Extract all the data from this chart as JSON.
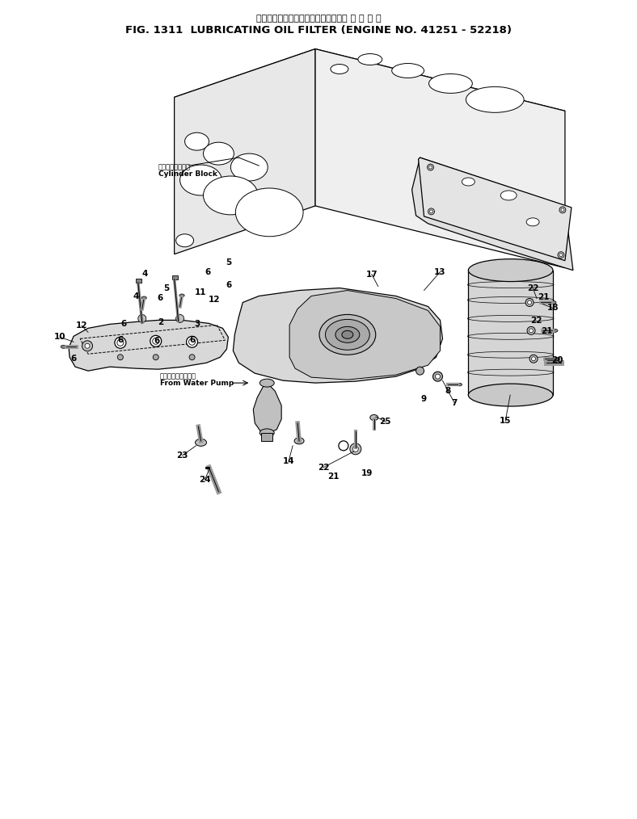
{
  "title_japanese": "ルーブリケーティングオイルフィルタ 適 用 号 後",
  "title_english": "FIG. 1311  LUBRICATING OIL FILTER (ENGINE NO. 41251 - 52218)",
  "background_color": "#ffffff",
  "line_color": "#000000",
  "figsize": [
    7.88,
    10.14
  ],
  "dpi": 100,
  "annotation_japanese_block": "シリンダブロック",
  "annotation_english_block": "Cylinder Block",
  "annotation_japanese_pump": "ウォータポンプから",
  "annotation_english_pump": "From Water Pump",
  "title_fontsize": 9,
  "label_fontsize": 7
}
